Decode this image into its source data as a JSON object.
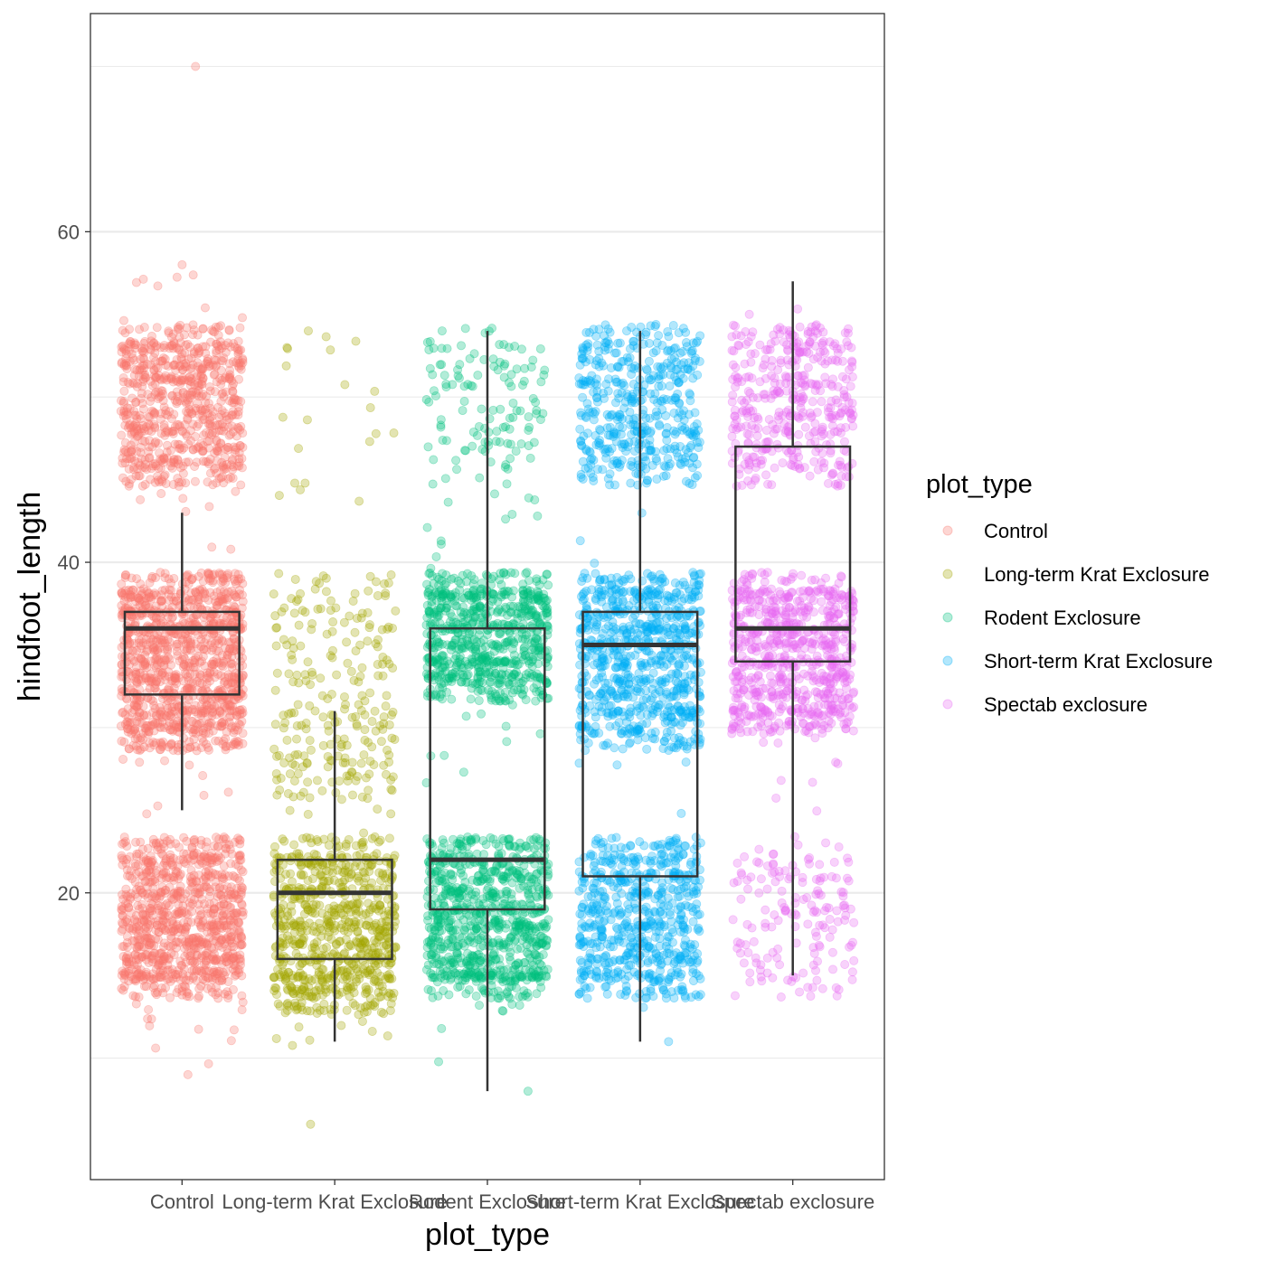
{
  "chart_data": {
    "type": "boxplot",
    "title": "",
    "xlabel": "plot_type",
    "ylabel": "hindfoot_length",
    "ylim": [
      2.65,
      73.2
    ],
    "yticks": [
      20,
      40,
      60
    ],
    "grid": true,
    "legend": {
      "title": "plot_type",
      "placement": "right",
      "entries": [
        "Control",
        "Long-term Krat Exclosure",
        "Rodent Exclosure",
        "Short-term Krat Exclosure",
        "Spectab exclosure"
      ]
    },
    "categories": [
      "Control",
      "Long-term Krat Exclosure",
      "Rodent Exclosure",
      "Short-term Krat Exclosure",
      "Spectab exclosure"
    ],
    "colors": [
      "#F8766D",
      "#A3A500",
      "#00BF7D",
      "#00B0F6",
      "#E76BF3"
    ],
    "boxes": [
      {
        "category": "Control",
        "whisker_low": 25,
        "q1": 32,
        "median": 36,
        "q3": 37,
        "whisker_high": 43
      },
      {
        "category": "Long-term Krat Exclosure",
        "whisker_low": 11,
        "q1": 16,
        "median": 20,
        "q3": 22,
        "whisker_high": 31
      },
      {
        "category": "Rodent Exclosure",
        "whisker_low": 8,
        "q1": 19,
        "median": 22,
        "q3": 36,
        "whisker_high": 54
      },
      {
        "category": "Short-term Krat Exclosure",
        "whisker_low": 11,
        "q1": 21,
        "median": 35,
        "q3": 37,
        "whisker_high": 54
      },
      {
        "category": "Spectab exclosure",
        "whisker_low": 15,
        "q1": 34,
        "median": 36,
        "q3": 47,
        "whisker_high": 57
      }
    ],
    "jitter_clusters": [
      {
        "category": "Control",
        "clusters": [
          {
            "range": [
              45,
              54
            ],
            "n": 700
          },
          {
            "range": [
              29,
              39
            ],
            "n": 1100
          },
          {
            "range": [
              14,
              23
            ],
            "n": 900
          },
          {
            "range": [
              10,
              58
            ],
            "n": 90
          }
        ],
        "extremes": [
          70,
          58,
          9
        ]
      },
      {
        "category": "Long-term Krat Exclosure",
        "clusters": [
          {
            "range": [
              44,
              54
            ],
            "n": 20
          },
          {
            "range": [
              26,
              39
            ],
            "n": 220
          },
          {
            "range": [
              13,
              23
            ],
            "n": 700
          },
          {
            "range": [
              11,
              30
            ],
            "n": 60
          }
        ],
        "extremes": [
          54,
          6
        ]
      },
      {
        "category": "Rodent Exclosure",
        "clusters": [
          {
            "range": [
              46,
              54
            ],
            "n": 120
          },
          {
            "range": [
              32,
              39
            ],
            "n": 700
          },
          {
            "range": [
              14,
              23
            ],
            "n": 800
          },
          {
            "range": [
              10,
              46
            ],
            "n": 70
          }
        ],
        "extremes": [
          54,
          8
        ]
      },
      {
        "category": "Short-term Krat Exclosure",
        "clusters": [
          {
            "range": [
              45,
              54
            ],
            "n": 450
          },
          {
            "range": [
              29,
              39
            ],
            "n": 750
          },
          {
            "range": [
              14,
              23
            ],
            "n": 600
          },
          {
            "range": [
              12,
              44
            ],
            "n": 40
          }
        ],
        "extremes": [
          54,
          11
        ]
      },
      {
        "category": "Spectab exclosure",
        "clusters": [
          {
            "range": [
              45,
              54
            ],
            "n": 400
          },
          {
            "range": [
              30,
              39
            ],
            "n": 700
          },
          {
            "range": [
              14,
              23
            ],
            "n": 150
          },
          {
            "range": [
              13,
              56
            ],
            "n": 40
          }
        ],
        "extremes": [
          55,
          14
        ]
      }
    ]
  }
}
